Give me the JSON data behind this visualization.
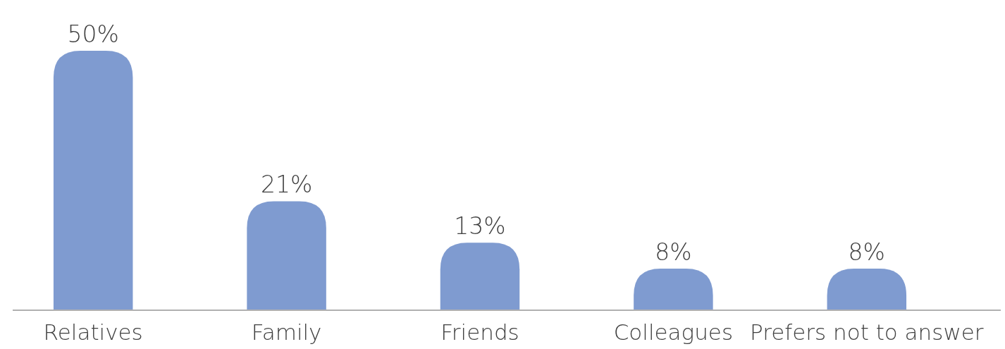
{
  "chart_data": {
    "type": "bar",
    "categories": [
      "Relatives",
      "Family",
      "Friends",
      "Colleagues",
      "Prefers not to answer"
    ],
    "values": [
      50,
      21,
      13,
      8,
      8
    ],
    "value_labels": [
      "50%",
      "21%",
      "13%",
      "8%",
      "8%"
    ],
    "color": "#7f9bd0"
  }
}
